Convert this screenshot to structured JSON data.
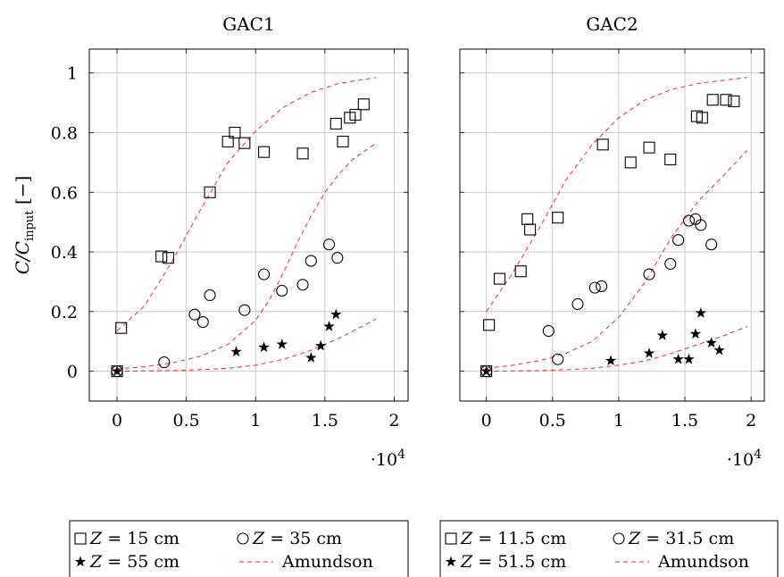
{
  "chart_data": [
    {
      "type": "scatter",
      "title": "GAC1",
      "ylabel": "C/C_input [−]",
      "x_multiplier": "·10^4",
      "xlim": [
        -2000,
        21000
      ],
      "ylim": [
        -0.1,
        1.08
      ],
      "xticks": [
        0,
        0.5,
        1,
        1.5,
        2
      ],
      "xtick_labels": [
        "0",
        "0.5",
        "1",
        "1.5",
        "2"
      ],
      "yticks": [
        0,
        0.2,
        0.4,
        0.6,
        0.8,
        1
      ],
      "ytick_labels": [
        "0",
        "0.2",
        "0.4",
        "0.6",
        "0.8",
        "1"
      ],
      "grid": true,
      "legend_position": "below",
      "series": [
        {
          "name": "Z = 15 cm",
          "marker": "square",
          "points": [
            [
              0,
              0
            ],
            [
              300,
              0.145
            ],
            [
              3200,
              0.385
            ],
            [
              3700,
              0.38
            ],
            [
              6700,
              0.6
            ],
            [
              8000,
              0.77
            ],
            [
              8500,
              0.8
            ],
            [
              9200,
              0.765
            ],
            [
              10600,
              0.735
            ],
            [
              13400,
              0.73
            ],
            [
              15800,
              0.83
            ],
            [
              16300,
              0.77
            ],
            [
              16800,
              0.85
            ],
            [
              17200,
              0.86
            ],
            [
              17800,
              0.895
            ]
          ]
        },
        {
          "name": "Z = 35 cm",
          "marker": "circle",
          "points": [
            [
              0,
              0
            ],
            [
              3400,
              0.03
            ],
            [
              5600,
              0.19
            ],
            [
              6200,
              0.165
            ],
            [
              6700,
              0.255
            ],
            [
              9200,
              0.205
            ],
            [
              10600,
              0.325
            ],
            [
              11900,
              0.27
            ],
            [
              13400,
              0.29
            ],
            [
              14000,
              0.37
            ],
            [
              15300,
              0.425
            ],
            [
              15900,
              0.38
            ]
          ]
        },
        {
          "name": "Z = 55 cm",
          "marker": "star",
          "points": [
            [
              0,
              0
            ],
            [
              8600,
              0.065
            ],
            [
              10600,
              0.08
            ],
            [
              11900,
              0.09
            ],
            [
              14000,
              0.045
            ],
            [
              14700,
              0.085
            ],
            [
              15300,
              0.15
            ],
            [
              15800,
              0.19
            ]
          ]
        }
      ],
      "models": [
        {
          "name": "Amundson",
          "style": "dashed",
          "points": [
            [
              0,
              0.135
            ],
            [
              2000,
              0.22
            ],
            [
              4000,
              0.37
            ],
            [
              6000,
              0.54
            ],
            [
              8000,
              0.7
            ],
            [
              10000,
              0.805
            ],
            [
              12000,
              0.885
            ],
            [
              14000,
              0.935
            ],
            [
              16000,
              0.965
            ],
            [
              18700,
              0.985
            ]
          ]
        },
        {
          "name": "Amundson",
          "style": "dashed",
          "points": [
            [
              0,
              0.008
            ],
            [
              2000,
              0.015
            ],
            [
              4000,
              0.028
            ],
            [
              6000,
              0.05
            ],
            [
              8000,
              0.09
            ],
            [
              10000,
              0.17
            ],
            [
              11000,
              0.24
            ],
            [
              12000,
              0.33
            ],
            [
              13000,
              0.43
            ],
            [
              14000,
              0.52
            ],
            [
              15000,
              0.6
            ],
            [
              16000,
              0.66
            ],
            [
              17000,
              0.71
            ],
            [
              18700,
              0.765
            ]
          ]
        },
        {
          "name": "Amundson",
          "style": "dashed",
          "points": [
            [
              0,
              0
            ],
            [
              4000,
              0.002
            ],
            [
              6000,
              0.005
            ],
            [
              8000,
              0.01
            ],
            [
              10000,
              0.02
            ],
            [
              12000,
              0.04
            ],
            [
              14000,
              0.07
            ],
            [
              16000,
              0.11
            ],
            [
              18700,
              0.175
            ]
          ]
        }
      ],
      "legend": [
        {
          "marker": "square",
          "label": "Z = 15 cm"
        },
        {
          "marker": "circle",
          "label": "Z = 35 cm"
        },
        {
          "marker": "star",
          "label": "Z = 55 cm"
        },
        {
          "marker": "dashed",
          "label": "Amundson"
        }
      ]
    },
    {
      "type": "scatter",
      "title": "GAC2",
      "x_multiplier": "·10^4",
      "xlim": [
        -2000,
        21000
      ],
      "ylim": [
        -0.1,
        1.08
      ],
      "xticks": [
        0,
        0.5,
        1,
        1.5,
        2
      ],
      "xtick_labels": [
        "0",
        "0.5",
        "1",
        "1.5",
        "2"
      ],
      "yticks": [
        0,
        0.2,
        0.4,
        0.6,
        0.8,
        1
      ],
      "grid": true,
      "legend_position": "below",
      "series": [
        {
          "name": "Z = 11.5 cm",
          "marker": "square",
          "points": [
            [
              0,
              0
            ],
            [
              200,
              0.155
            ],
            [
              1000,
              0.31
            ],
            [
              2600,
              0.335
            ],
            [
              3100,
              0.51
            ],
            [
              3300,
              0.475
            ],
            [
              5400,
              0.515
            ],
            [
              8800,
              0.76
            ],
            [
              10900,
              0.7
            ],
            [
              12300,
              0.75
            ],
            [
              13900,
              0.71
            ],
            [
              15900,
              0.855
            ],
            [
              16300,
              0.85
            ],
            [
              17100,
              0.91
            ],
            [
              18100,
              0.91
            ],
            [
              18700,
              0.905
            ]
          ]
        },
        {
          "name": "Z = 31.5 cm",
          "marker": "circle",
          "points": [
            [
              0,
              0
            ],
            [
              4700,
              0.135
            ],
            [
              5400,
              0.04
            ],
            [
              6900,
              0.225
            ],
            [
              8200,
              0.28
            ],
            [
              8700,
              0.285
            ],
            [
              12300,
              0.325
            ],
            [
              13900,
              0.36
            ],
            [
              14500,
              0.44
            ],
            [
              15300,
              0.505
            ],
            [
              15800,
              0.51
            ],
            [
              16200,
              0.49
            ],
            [
              17000,
              0.425
            ]
          ]
        },
        {
          "name": "Z = 51.5 cm",
          "marker": "star",
          "points": [
            [
              0,
              0
            ],
            [
              9400,
              0.035
            ],
            [
              12300,
              0.06
            ],
            [
              13300,
              0.12
            ],
            [
              14500,
              0.04
            ],
            [
              15300,
              0.04
            ],
            [
              15800,
              0.125
            ],
            [
              16200,
              0.195
            ],
            [
              17000,
              0.095
            ],
            [
              17600,
              0.07
            ]
          ]
        }
      ],
      "models": [
        {
          "name": "Amundson",
          "style": "dashed",
          "points": [
            [
              0,
              0.2
            ],
            [
              2000,
              0.33
            ],
            [
              4000,
              0.48
            ],
            [
              6000,
              0.64
            ],
            [
              8000,
              0.76
            ],
            [
              10000,
              0.85
            ],
            [
              12000,
              0.91
            ],
            [
              14000,
              0.945
            ],
            [
              16000,
              0.965
            ],
            [
              19700,
              0.985
            ]
          ]
        },
        {
          "name": "Amundson",
          "style": "dashed",
          "points": [
            [
              0,
              0.01
            ],
            [
              2000,
              0.02
            ],
            [
              4000,
              0.035
            ],
            [
              6000,
              0.06
            ],
            [
              8000,
              0.1
            ],
            [
              10000,
              0.18
            ],
            [
              12000,
              0.3
            ],
            [
              14000,
              0.45
            ],
            [
              16000,
              0.57
            ],
            [
              18000,
              0.66
            ],
            [
              19700,
              0.74
            ]
          ]
        },
        {
          "name": "Amundson",
          "style": "dashed",
          "points": [
            [
              0,
              0
            ],
            [
              4000,
              0.002
            ],
            [
              6000,
              0.005
            ],
            [
              8000,
              0.01
            ],
            [
              10000,
              0.02
            ],
            [
              12000,
              0.035
            ],
            [
              14000,
              0.06
            ],
            [
              16000,
              0.09
            ],
            [
              18000,
              0.12
            ],
            [
              19700,
              0.15
            ]
          ]
        }
      ],
      "legend": [
        {
          "marker": "square",
          "label": "Z = 11.5 cm"
        },
        {
          "marker": "circle",
          "label": "Z = 31.5 cm"
        },
        {
          "marker": "star",
          "label": "Z = 51.5 cm"
        },
        {
          "marker": "dashed",
          "label": "Amundson"
        }
      ]
    }
  ]
}
